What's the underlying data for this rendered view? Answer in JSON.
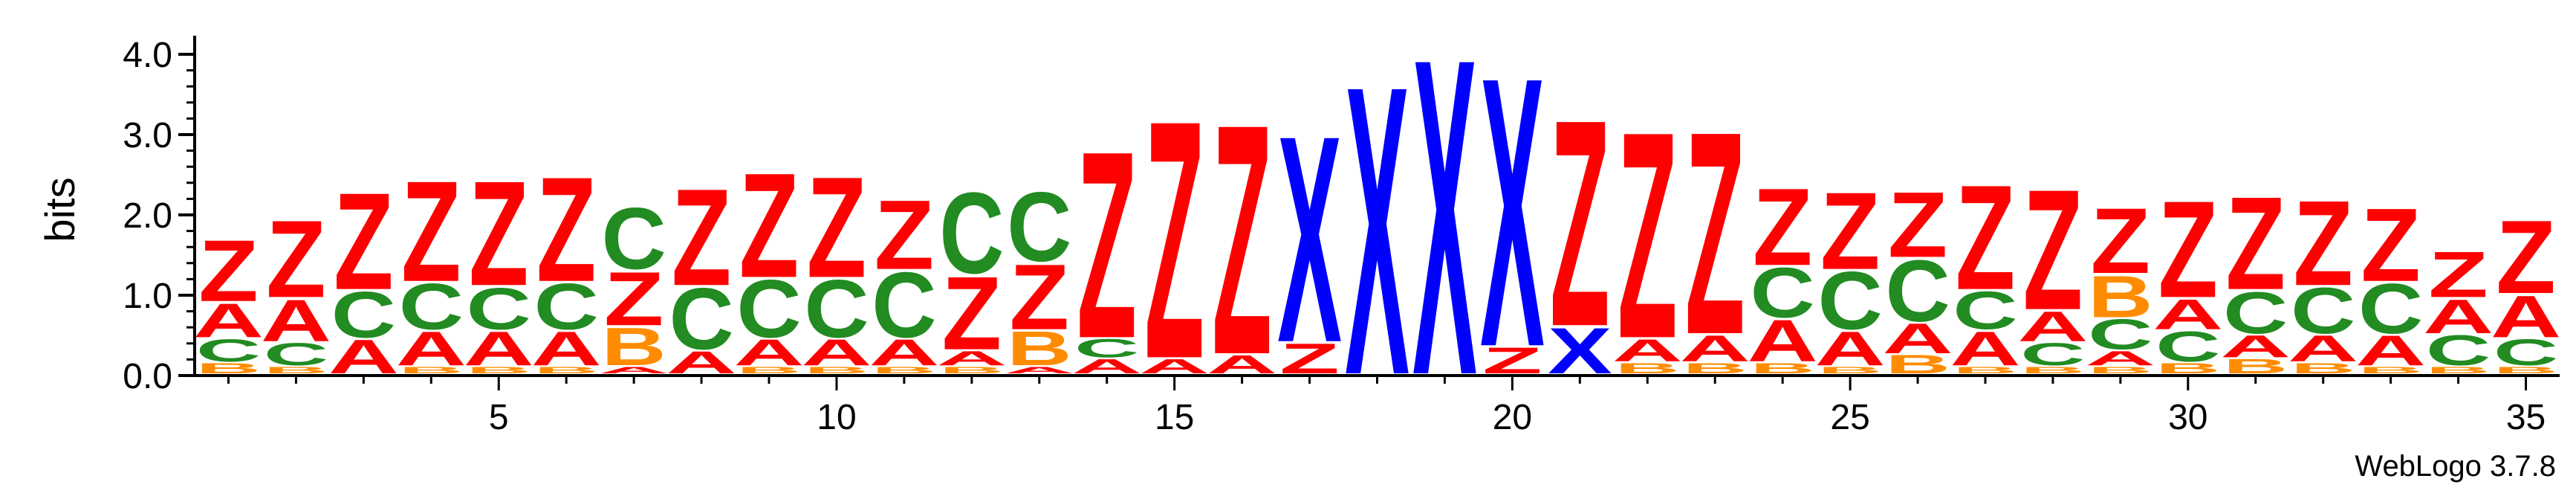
{
  "chart_data": {
    "type": "sequence-logo",
    "ylabel": "bits",
    "ylim": [
      0,
      4.2
    ],
    "yticks": [
      "0.0",
      "1.0",
      "2.0",
      "3.0",
      "4.0"
    ],
    "xticks": [
      "5",
      "10",
      "15",
      "20",
      "25",
      "30",
      "35"
    ],
    "credit": "WebLogo 3.7.8",
    "colors": {
      "Z": "#ff0000",
      "C": "#228b22",
      "A": "#ff0000",
      "B": "#ff8c00",
      "X": "#0000ff"
    },
    "positions": [
      {
        "pos": 1,
        "stack": [
          [
            "B",
            0.15
          ],
          [
            "C",
            0.3
          ],
          [
            "A",
            0.45
          ],
          [
            "Z",
            0.8
          ]
        ]
      },
      {
        "pos": 2,
        "stack": [
          [
            "B",
            0.1
          ],
          [
            "C",
            0.3
          ],
          [
            "A",
            0.55
          ],
          [
            "Z",
            1.0
          ]
        ]
      },
      {
        "pos": 3,
        "stack": [
          [
            "A",
            0.45
          ],
          [
            "C",
            0.6
          ],
          [
            "Z",
            1.25
          ]
        ]
      },
      {
        "pos": 4,
        "stack": [
          [
            "B",
            0.1
          ],
          [
            "A",
            0.45
          ],
          [
            "C",
            0.6
          ],
          [
            "Z",
            1.3
          ]
        ]
      },
      {
        "pos": 5,
        "stack": [
          [
            "B",
            0.1
          ],
          [
            "A",
            0.45
          ],
          [
            "C",
            0.55
          ],
          [
            "Z",
            1.35
          ]
        ]
      },
      {
        "pos": 6,
        "stack": [
          [
            "B",
            0.1
          ],
          [
            "A",
            0.45
          ],
          [
            "C",
            0.6
          ],
          [
            "Z",
            1.35
          ]
        ]
      },
      {
        "pos": 7,
        "stack": [
          [
            "A",
            0.1
          ],
          [
            "B",
            0.5
          ],
          [
            "Z",
            0.7
          ],
          [
            "C",
            0.8
          ]
        ]
      },
      {
        "pos": 8,
        "stack": [
          [
            "A",
            0.3
          ],
          [
            "C",
            0.8
          ],
          [
            "Z",
            1.25
          ]
        ]
      },
      {
        "pos": 9,
        "stack": [
          [
            "B",
            0.1
          ],
          [
            "A",
            0.35
          ],
          [
            "C",
            0.75
          ],
          [
            "Z",
            1.35
          ]
        ]
      },
      {
        "pos": 10,
        "stack": [
          [
            "B",
            0.1
          ],
          [
            "A",
            0.35
          ],
          [
            "C",
            0.75
          ],
          [
            "Z",
            1.3
          ]
        ]
      },
      {
        "pos": 11,
        "stack": [
          [
            "B",
            0.1
          ],
          [
            "A",
            0.35
          ],
          [
            "C",
            0.85
          ],
          [
            "Z",
            0.9
          ]
        ]
      },
      {
        "pos": 12,
        "stack": [
          [
            "B",
            0.1
          ],
          [
            "A",
            0.2
          ],
          [
            "Z",
            0.95
          ],
          [
            "C",
            1.05
          ]
        ]
      },
      {
        "pos": 13,
        "stack": [
          [
            "A",
            0.1
          ],
          [
            "B",
            0.45
          ],
          [
            "Z",
            0.85
          ],
          [
            "C",
            0.9
          ]
        ]
      },
      {
        "pos": 14,
        "stack": [
          [
            "A",
            0.2
          ],
          [
            "C",
            0.25
          ],
          [
            "Z",
            2.4
          ]
        ]
      },
      {
        "pos": 15,
        "stack": [
          [
            "A",
            0.2
          ],
          [
            "Z",
            3.05
          ]
        ]
      },
      {
        "pos": 16,
        "stack": [
          [
            "A",
            0.25
          ],
          [
            "Z",
            2.95
          ]
        ]
      },
      {
        "pos": 17,
        "stack": [
          [
            "Z",
            0.4
          ],
          [
            "X",
            2.65
          ]
        ]
      },
      {
        "pos": 18,
        "stack": [
          [
            "X",
            3.7
          ]
        ]
      },
      {
        "pos": 19,
        "stack": [
          [
            "X",
            4.05
          ]
        ]
      },
      {
        "pos": 20,
        "stack": [
          [
            "Z",
            0.35
          ],
          [
            "X",
            3.45
          ]
        ]
      },
      {
        "pos": 21,
        "stack": [
          [
            "X",
            0.6
          ],
          [
            "Z",
            2.65
          ]
        ]
      },
      {
        "pos": 22,
        "stack": [
          [
            "B",
            0.15
          ],
          [
            "A",
            0.3
          ],
          [
            "Z",
            2.65
          ]
        ]
      },
      {
        "pos": 23,
        "stack": [
          [
            "B",
            0.15
          ],
          [
            "A",
            0.35
          ],
          [
            "Z",
            2.6
          ]
        ]
      },
      {
        "pos": 24,
        "stack": [
          [
            "B",
            0.15
          ],
          [
            "A",
            0.55
          ],
          [
            "C",
            0.65
          ],
          [
            "Z",
            1.0
          ]
        ]
      },
      {
        "pos": 25,
        "stack": [
          [
            "B",
            0.1
          ],
          [
            "A",
            0.45
          ],
          [
            "C",
            0.75
          ],
          [
            "Z",
            1.0
          ]
        ]
      },
      {
        "pos": 26,
        "stack": [
          [
            "B",
            0.25
          ],
          [
            "A",
            0.4
          ],
          [
            "C",
            0.8
          ],
          [
            "Z",
            0.85
          ]
        ]
      },
      {
        "pos": 27,
        "stack": [
          [
            "B",
            0.1
          ],
          [
            "A",
            0.45
          ],
          [
            "C",
            0.5
          ],
          [
            "Z",
            1.35
          ]
        ]
      },
      {
        "pos": 28,
        "stack": [
          [
            "B",
            0.1
          ],
          [
            "C",
            0.3
          ],
          [
            "A",
            0.4
          ],
          [
            "Z",
            1.55
          ]
        ]
      },
      {
        "pos": 29,
        "stack": [
          [
            "B",
            0.1
          ],
          [
            "A",
            0.2
          ],
          [
            "C",
            0.4
          ],
          [
            "B",
            0.55
          ],
          [
            "Z",
            0.85
          ]
        ]
      },
      {
        "pos": 30,
        "stack": [
          [
            "B",
            0.15
          ],
          [
            "C",
            0.4
          ],
          [
            "A",
            0.4
          ],
          [
            "Z",
            1.25
          ]
        ]
      },
      {
        "pos": 31,
        "stack": [
          [
            "B",
            0.2
          ],
          [
            "A",
            0.3
          ],
          [
            "C",
            0.55
          ],
          [
            "Z",
            1.2
          ]
        ]
      },
      {
        "pos": 32,
        "stack": [
          [
            "B",
            0.15
          ],
          [
            "A",
            0.35
          ],
          [
            "C",
            0.6
          ],
          [
            "Z",
            1.1
          ]
        ]
      },
      {
        "pos": 33,
        "stack": [
          [
            "B",
            0.1
          ],
          [
            "A",
            0.4
          ],
          [
            "C",
            0.65
          ],
          [
            "Z",
            0.95
          ]
        ]
      },
      {
        "pos": 34,
        "stack": [
          [
            "B",
            0.1
          ],
          [
            "C",
            0.4
          ],
          [
            "A",
            0.45
          ],
          [
            "Z",
            0.6
          ]
        ]
      },
      {
        "pos": 35,
        "stack": [
          [
            "B",
            0.1
          ],
          [
            "C",
            0.35
          ],
          [
            "A",
            0.55
          ],
          [
            "Z",
            0.95
          ]
        ]
      }
    ]
  }
}
